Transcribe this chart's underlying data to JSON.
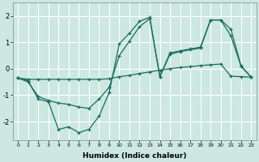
{
  "xlabel": "Humidex (Indice chaleur)",
  "xlim": [
    -0.5,
    23.5
  ],
  "ylim": [
    -2.7,
    2.5
  ],
  "xticks": [
    0,
    1,
    2,
    3,
    4,
    5,
    6,
    7,
    8,
    9,
    10,
    11,
    12,
    13,
    14,
    15,
    16,
    17,
    18,
    19,
    20,
    21,
    22,
    23
  ],
  "yticks": [
    -2,
    -1,
    0,
    1,
    2
  ],
  "bg_color": "#cce8e0",
  "grid_color": "#ffffff",
  "line_color": "#1a6b5e",
  "line1_x": [
    0,
    1,
    2,
    3,
    4,
    5,
    6,
    7,
    8,
    9,
    10,
    11,
    12,
    13,
    14,
    15,
    16,
    17,
    18,
    19,
    20,
    21,
    22,
    23
  ],
  "line1_y": [
    -0.35,
    -0.4,
    -0.4,
    -0.4,
    -0.4,
    -0.4,
    -0.4,
    -0.4,
    -0.4,
    -0.38,
    -0.3,
    -0.25,
    -0.18,
    -0.12,
    -0.05,
    0.0,
    0.05,
    0.08,
    0.12,
    0.15,
    0.18,
    -0.28,
    -0.3,
    -0.32
  ],
  "line2_x": [
    0,
    1,
    2,
    3,
    4,
    5,
    6,
    7,
    8,
    9,
    10,
    11,
    12,
    13,
    14,
    15,
    16,
    17,
    18,
    19,
    20,
    21,
    22,
    23
  ],
  "line2_y": [
    -0.35,
    -0.45,
    -1.15,
    -1.25,
    -2.3,
    -2.2,
    -2.42,
    -2.3,
    -1.8,
    -0.9,
    0.95,
    1.35,
    1.8,
    1.95,
    -0.3,
    0.55,
    0.65,
    0.72,
    0.78,
    1.85,
    1.85,
    1.25,
    0.1,
    -0.32
  ],
  "line3_x": [
    0,
    1,
    2,
    3,
    4,
    5,
    6,
    7,
    8,
    9,
    10,
    11,
    12,
    13,
    14,
    15,
    16,
    17,
    18,
    19,
    20,
    21,
    22,
    23
  ],
  "line3_y": [
    -0.35,
    -0.5,
    -1.05,
    -1.2,
    -1.3,
    -1.35,
    -1.45,
    -1.5,
    -1.15,
    -0.7,
    0.5,
    1.05,
    1.6,
    1.9,
    -0.3,
    0.6,
    0.68,
    0.75,
    0.82,
    1.85,
    1.85,
    1.5,
    0.12,
    -0.32
  ]
}
